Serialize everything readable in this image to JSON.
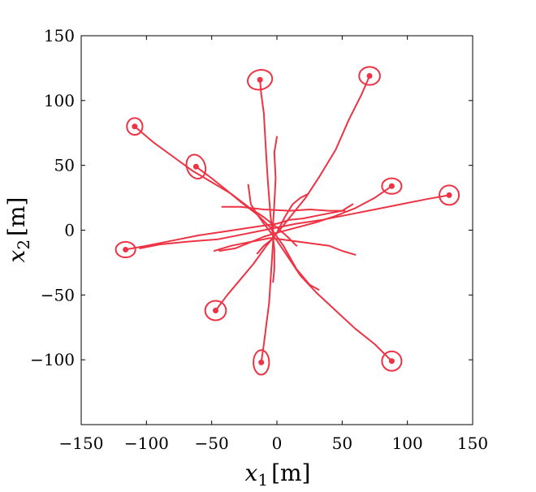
{
  "chart_data": {
    "type": "line",
    "xlabel_var": "x",
    "xlabel_sub": "1",
    "xlabel_unit": "[m]",
    "ylabel_var": "x",
    "ylabel_sub": "2",
    "ylabel_unit": "[m]",
    "xlim": [
      -150,
      150
    ],
    "ylim": [
      -150,
      150
    ],
    "xticks": [
      -150,
      -100,
      -50,
      0,
      50,
      100,
      150
    ],
    "yticks": [
      -100,
      -50,
      0,
      50,
      100,
      150
    ],
    "xtick_labels": [
      "−150",
      "−100",
      "−50",
      "0",
      "50",
      "100",
      "150"
    ],
    "ytick_labels": [
      "−100",
      "−50",
      "0",
      "50",
      "100",
      "150"
    ],
    "grid": false,
    "line_color": "#ee3344",
    "series": [
      {
        "values": [
          [
            -13,
            116
          ],
          [
            -12,
            105
          ],
          [
            -10,
            90
          ],
          [
            -9,
            72
          ],
          [
            -8,
            55
          ],
          [
            -7,
            38
          ],
          [
            -6,
            25
          ],
          [
            -5,
            12
          ],
          [
            -4,
            3
          ],
          [
            -3,
            -5
          ],
          [
            -2,
            -15
          ],
          [
            -2,
            -30
          ],
          [
            -3,
            -40
          ]
        ],
        "end": [
          -13,
          116
        ],
        "ellipse": [
          9.5,
          7.5,
          -15
        ]
      },
      {
        "values": [
          [
            71,
            119
          ],
          [
            65,
            105
          ],
          [
            55,
            85
          ],
          [
            45,
            62
          ],
          [
            33,
            42
          ],
          [
            22,
            25
          ],
          [
            10,
            10
          ],
          [
            2,
            0
          ],
          [
            -5,
            -8
          ],
          [
            -10,
            -12
          ],
          [
            -15,
            -18
          ]
        ],
        "end": [
          71,
          119
        ],
        "ellipse": [
          8,
          7,
          0
        ]
      },
      {
        "values": [
          [
            -109,
            80
          ],
          [
            -95,
            68
          ],
          [
            -80,
            57
          ],
          [
            -65,
            46
          ],
          [
            -50,
            37
          ],
          [
            -35,
            28
          ],
          [
            -22,
            18
          ],
          [
            -10,
            10
          ],
          [
            0,
            2
          ],
          [
            8,
            -5
          ],
          [
            15,
            -12
          ]
        ],
        "end": [
          -109,
          80
        ],
        "ellipse": [
          6,
          6.5,
          0
        ]
      },
      {
        "values": [
          [
            -62,
            49
          ],
          [
            -50,
            40
          ],
          [
            -40,
            32
          ],
          [
            -28,
            22
          ],
          [
            -15,
            12
          ],
          [
            -5,
            2
          ],
          [
            5,
            -12
          ],
          [
            15,
            -30
          ],
          [
            25,
            -42
          ],
          [
            32,
            -46
          ]
        ],
        "end": [
          -62,
          49
        ],
        "ellipse": [
          7,
          9.5,
          -20
        ]
      },
      {
        "values": [
          [
            88,
            34
          ],
          [
            75,
            25
          ],
          [
            60,
            17
          ],
          [
            45,
            11
          ],
          [
            30,
            6
          ],
          [
            15,
            2
          ],
          [
            0,
            -2
          ],
          [
            -10,
            -5
          ],
          [
            -22,
            -10
          ],
          [
            -32,
            -14
          ],
          [
            -44,
            -16
          ]
        ],
        "end": [
          88,
          34
        ],
        "ellipse": [
          7.5,
          6,
          0
        ]
      },
      {
        "values": [
          [
            132,
            27
          ],
          [
            115,
            24
          ],
          [
            95,
            20
          ],
          [
            75,
            16
          ],
          [
            55,
            12
          ],
          [
            35,
            8
          ],
          [
            15,
            5
          ],
          [
            -5,
            1
          ],
          [
            -25,
            -3
          ],
          [
            -45,
            -7
          ],
          [
            -70,
            -9
          ],
          [
            -90,
            -11
          ],
          [
            -105,
            -14
          ]
        ],
        "end": [
          132,
          27
        ],
        "ellipse": [
          7.5,
          7.5,
          0
        ]
      },
      {
        "values": [
          [
            -116,
            -15
          ],
          [
            -100,
            -12
          ],
          [
            -80,
            -8
          ],
          [
            -60,
            -4
          ],
          [
            -40,
            -1
          ],
          [
            -20,
            2
          ],
          [
            0,
            5
          ],
          [
            10,
            8
          ],
          [
            20,
            9
          ],
          [
            35,
            12
          ],
          [
            50,
            15
          ],
          [
            58,
            20
          ]
        ],
        "end": [
          -116,
          -15
        ],
        "ellipse": [
          7.5,
          6,
          0
        ]
      },
      {
        "values": [
          [
            -47,
            -62
          ],
          [
            -38,
            -50
          ],
          [
            -28,
            -38
          ],
          [
            -18,
            -26
          ],
          [
            -8,
            -12
          ],
          [
            0,
            -2
          ],
          [
            6,
            10
          ],
          [
            12,
            20
          ],
          [
            18,
            25
          ],
          [
            24,
            28
          ]
        ],
        "end": [
          -47,
          -62
        ],
        "ellipse": [
          8,
          7.5,
          0
        ]
      },
      {
        "values": [
          [
            -12,
            -102
          ],
          [
            -10,
            -88
          ],
          [
            -8,
            -72
          ],
          [
            -6,
            -56
          ],
          [
            -5,
            -40
          ],
          [
            -4,
            -25
          ],
          [
            -3,
            -10
          ],
          [
            -3,
            5
          ],
          [
            -2,
            20
          ],
          [
            -1,
            40
          ],
          [
            -2,
            60
          ],
          [
            0,
            72
          ]
        ],
        "end": [
          -12,
          -102
        ],
        "ellipse": [
          6,
          9.5,
          0
        ]
      },
      {
        "values": [
          [
            88,
            -101
          ],
          [
            75,
            -88
          ],
          [
            60,
            -76
          ],
          [
            45,
            -62
          ],
          [
            30,
            -48
          ],
          [
            18,
            -35
          ],
          [
            8,
            -20
          ],
          [
            0,
            -8
          ],
          [
            -10,
            5
          ],
          [
            -15,
            12
          ],
          [
            -20,
            20
          ],
          [
            -22,
            35
          ]
        ],
        "end": [
          88,
          -101
        ],
        "ellipse": [
          7.5,
          7.5,
          0
        ]
      },
      {
        "values": [
          [
            -42,
            18
          ],
          [
            -28,
            18
          ],
          [
            -10,
            16
          ],
          [
            10,
            15
          ],
          [
            25,
            16
          ],
          [
            40,
            15
          ],
          [
            52,
            15
          ]
        ],
        "end": null,
        "ellipse": null
      },
      {
        "values": [
          [
            -48,
            -16
          ],
          [
            -35,
            -12
          ],
          [
            -20,
            -9
          ],
          [
            -5,
            -6
          ],
          [
            10,
            -8
          ],
          [
            25,
            -10
          ],
          [
            40,
            -12
          ],
          [
            50,
            -16
          ],
          [
            60,
            -19
          ]
        ],
        "end": null,
        "ellipse": null
      }
    ]
  }
}
